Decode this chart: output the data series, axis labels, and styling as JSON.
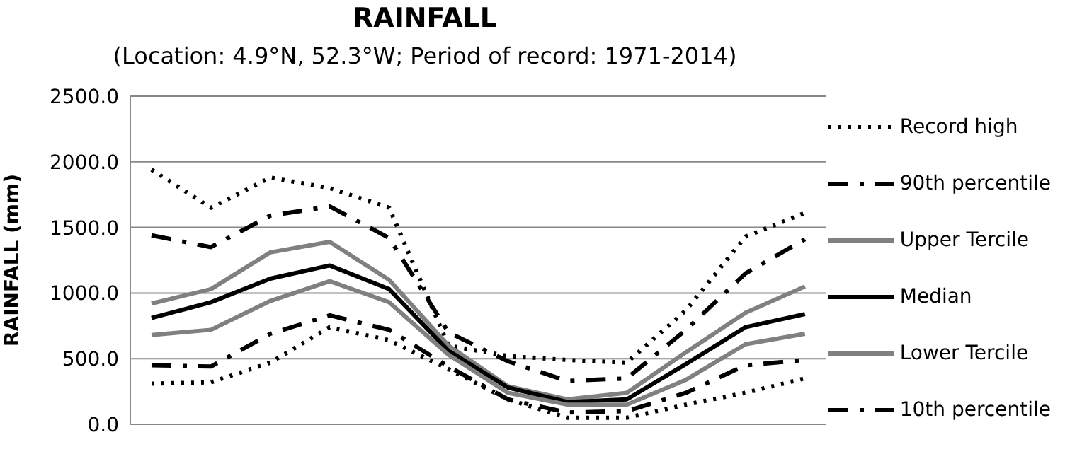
{
  "chart_data": {
    "type": "line",
    "title": "RAINFALL",
    "subtitle": "(Location: 4.9°N, 52.3°W; Period of record: 1971-2014)",
    "ylabel": "RAINFALL (mm)",
    "categories": [
      null,
      null,
      null,
      null,
      null,
      null,
      null,
      null,
      null,
      null,
      null,
      null
    ],
    "series": [
      {
        "name": "Record high",
        "color": "#000000",
        "line_style": "dotted",
        "values": [
          1940,
          1650,
          1880,
          1800,
          1650,
          600,
          520,
          490,
          470,
          870,
          1430,
          1610
        ]
      },
      {
        "name": "90th percentile",
        "color": "#000000",
        "line_style": "dashdot",
        "values": [
          1440,
          1350,
          1590,
          1660,
          1420,
          700,
          480,
          330,
          350,
          720,
          1150,
          1410
        ]
      },
      {
        "name": "Upper Tercile",
        "color": "#808080",
        "line_style": "solid",
        "values": [
          920,
          1030,
          1310,
          1390,
          1100,
          600,
          290,
          190,
          240,
          550,
          850,
          1050
        ]
      },
      {
        "name": "Median",
        "color": "#000000",
        "line_style": "solid",
        "values": [
          810,
          930,
          1110,
          1210,
          1030,
          560,
          280,
          170,
          190,
          460,
          740,
          840
        ]
      },
      {
        "name": "Lower Tercile",
        "color": "#808080",
        "line_style": "solid",
        "values": [
          680,
          720,
          940,
          1090,
          930,
          530,
          240,
          150,
          150,
          340,
          610,
          690
        ]
      },
      {
        "name": "10th percentile",
        "color": "#000000",
        "line_style": "dashdot",
        "values": [
          450,
          440,
          690,
          830,
          720,
          440,
          190,
          90,
          100,
          240,
          450,
          490
        ]
      },
      {
        "color": "#000000",
        "line_style": "dotted",
        "values": [
          310,
          320,
          470,
          740,
          640,
          420,
          190,
          50,
          50,
          150,
          240,
          350
        ]
      }
    ],
    "ylim": [
      0,
      2500
    ],
    "yticks": [
      {
        "value": 0,
        "label": "0.0"
      },
      {
        "value": 500,
        "label": "500.0"
      },
      {
        "value": 1000,
        "label": "1000.0"
      },
      {
        "value": 1500,
        "label": "1500.0"
      },
      {
        "value": 2000,
        "label": "2000.0"
      },
      {
        "value": 2500,
        "label": "2500.0"
      }
    ],
    "grid": "y",
    "legend": "right",
    "marker": "none"
  }
}
